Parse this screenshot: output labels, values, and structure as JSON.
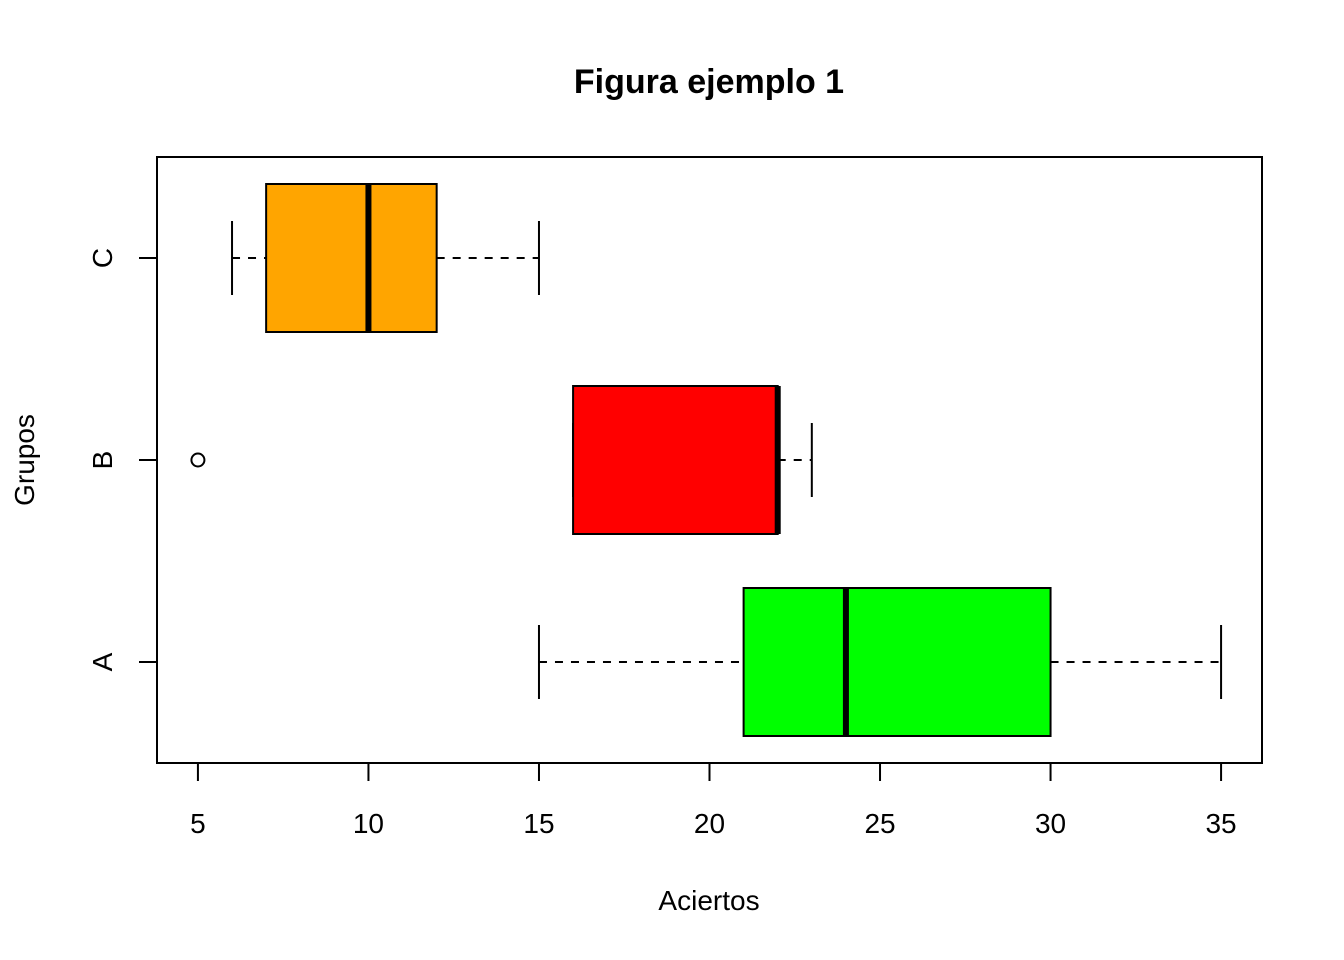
{
  "chart_data": {
    "type": "boxplot",
    "orientation": "horizontal",
    "title": "Figura ejemplo 1",
    "xlabel": "Aciertos",
    "ylabel": "Grupos",
    "xlim": [
      3.8,
      36.2
    ],
    "x_ticks": [
      5,
      10,
      15,
      20,
      25,
      30,
      35
    ],
    "grid": false,
    "legend": "none",
    "groups": [
      {
        "label": "A",
        "whisker_low": 15,
        "q1": 21,
        "median": 24,
        "q3": 30,
        "whisker_high": 35,
        "outliers": [],
        "color": "#00FF00"
      },
      {
        "label": "B",
        "whisker_low": 16,
        "q1": 16,
        "median": 22,
        "q3": 22,
        "whisker_high": 23,
        "outliers": [
          5
        ],
        "color": "#FF0000"
      },
      {
        "label": "C",
        "whisker_low": 6,
        "q1": 7,
        "median": 10,
        "q3": 12,
        "whisker_high": 15,
        "outliers": [],
        "color": "#FFA500"
      }
    ]
  }
}
